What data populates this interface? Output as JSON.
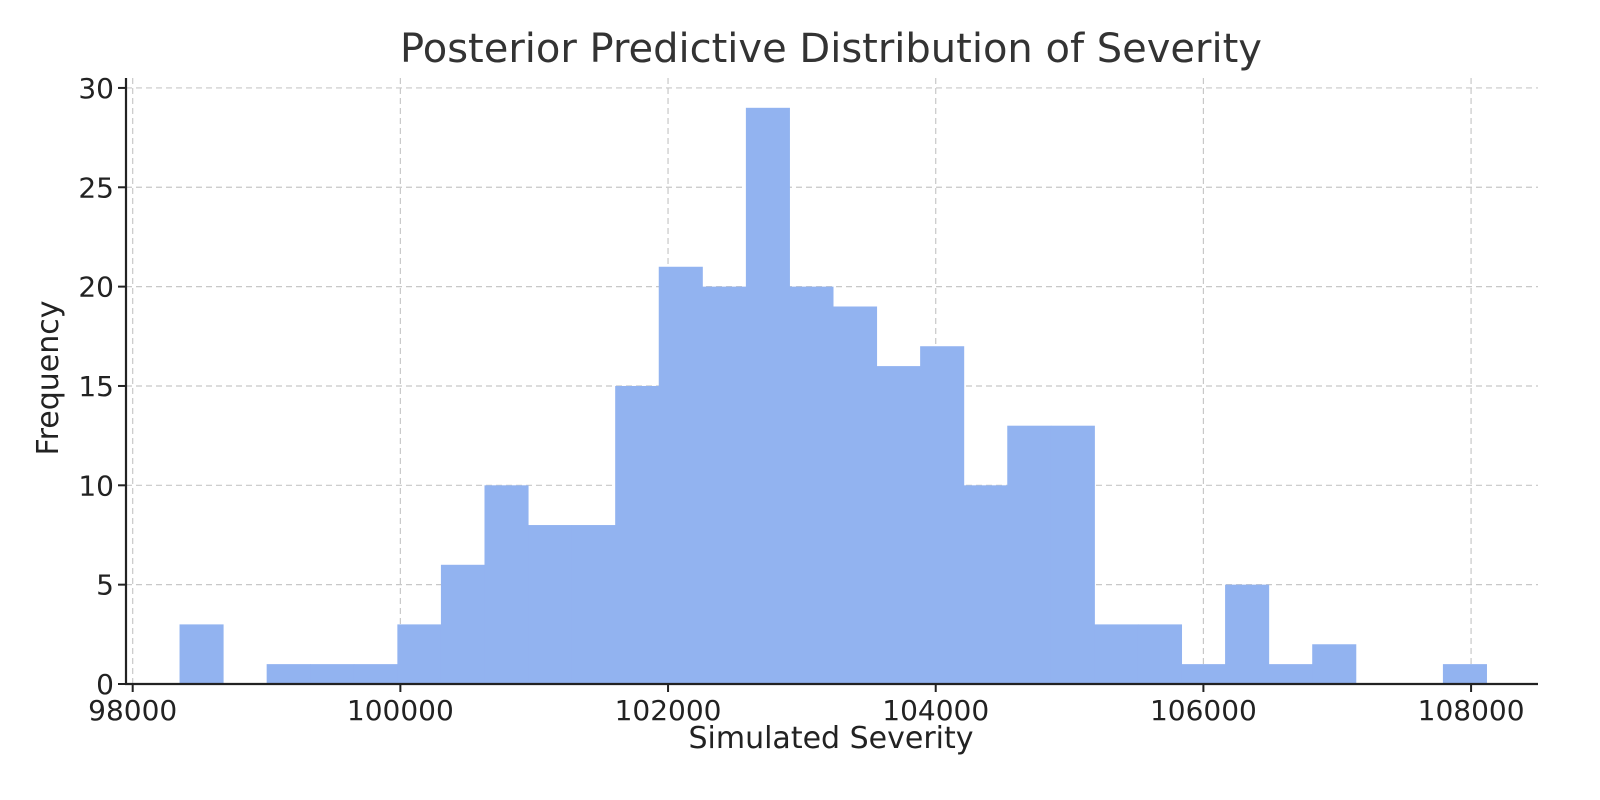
{
  "chart_data": {
    "type": "bar",
    "title": "Posterior Predictive Distribution of Severity",
    "xlabel": "Simulated Severity",
    "ylabel": "Frequency",
    "xlim": [
      97950,
      108500
    ],
    "ylim": [
      0,
      30.5
    ],
    "x_ticks": [
      98000,
      100000,
      102000,
      104000,
      106000,
      108000
    ],
    "x_tick_labels": [
      "98000",
      "100000",
      "102000",
      "104000",
      "106000",
      "108000"
    ],
    "y_ticks": [
      0,
      5,
      10,
      15,
      20,
      25,
      30
    ],
    "y_tick_labels": [
      "0",
      "5",
      "10",
      "15",
      "20",
      "25",
      "30"
    ],
    "grid": true,
    "bar_color": "#92b3f0",
    "bin_start": 98350,
    "bin_width": 325.5,
    "frequencies": [
      3,
      0,
      1,
      1,
      1,
      3,
      6,
      10,
      8,
      8,
      15,
      21,
      20,
      29,
      20,
      19,
      16,
      17,
      10,
      13,
      13,
      3,
      3,
      1,
      5,
      1,
      2,
      0,
      0,
      1
    ]
  }
}
